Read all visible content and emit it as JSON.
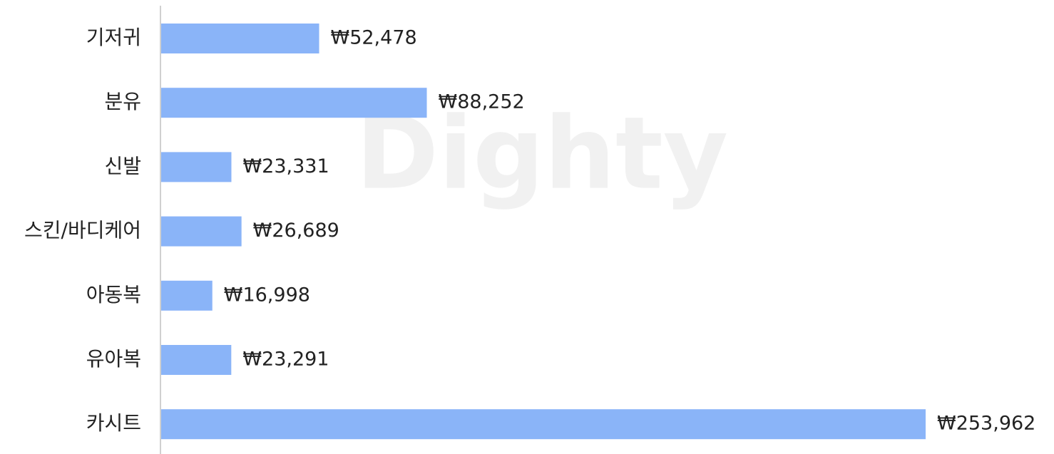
{
  "chart_data": {
    "type": "bar",
    "orientation": "horizontal",
    "watermark": "Dighty",
    "categories": [
      "기저귀",
      "분유",
      "신발",
      "스킨/바디케어",
      "아동복",
      "유아복",
      "카시트"
    ],
    "values": [
      52478,
      88252,
      23331,
      26689,
      16998,
      23291,
      253962
    ],
    "value_labels": [
      "₩52,478",
      "₩88,252",
      "₩23,331",
      "₩26,689",
      "₩16,998",
      "₩23,291",
      "₩253,962"
    ],
    "color": "#8ab4f8"
  }
}
